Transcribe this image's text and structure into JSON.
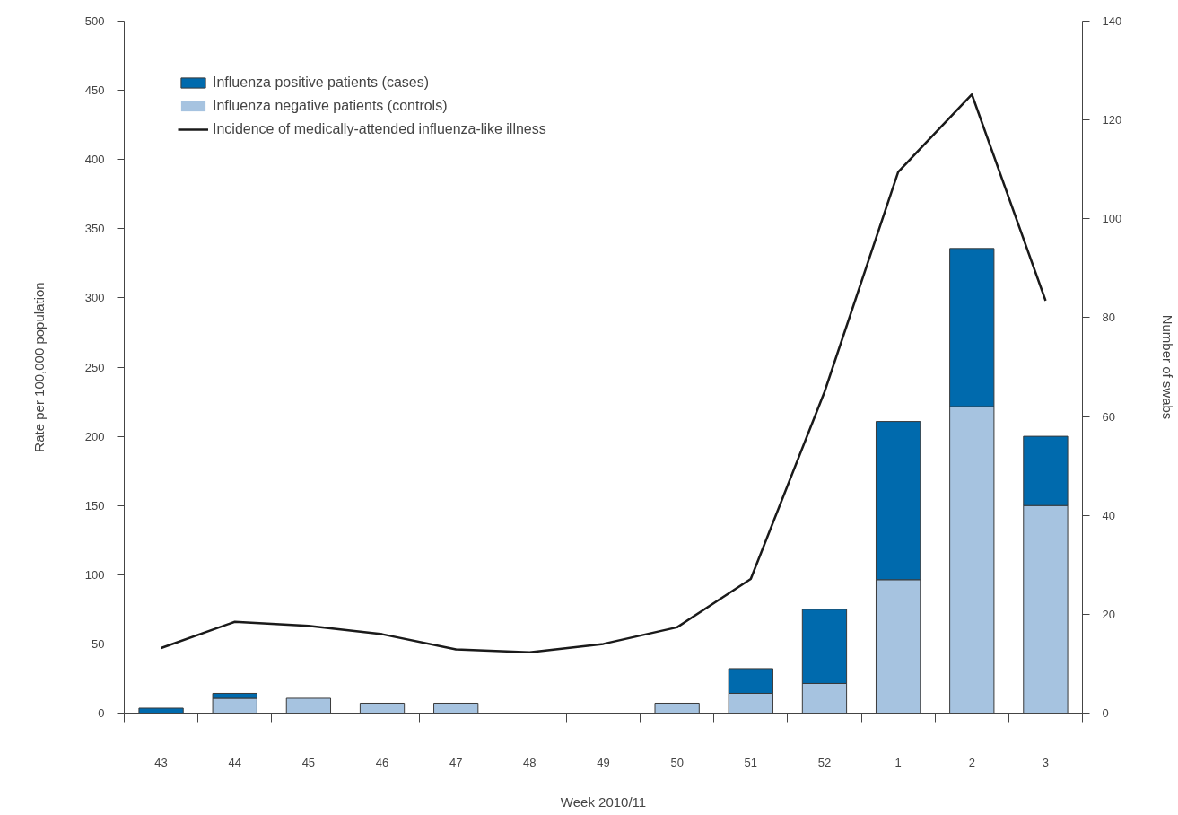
{
  "chart_data": {
    "type": "bar",
    "stacked": true,
    "xlabel": "Week 2010/11",
    "ylabel": "Rate per 100,000 population",
    "y2label": "Number of swabs",
    "categories": [
      "43",
      "44",
      "45",
      "46",
      "47",
      "48",
      "49",
      "50",
      "51",
      "52",
      "1",
      "2",
      "3"
    ],
    "series": [
      {
        "name": "Influenza negative patients (controls)",
        "color": "#a6c3e0",
        "axis": "y2",
        "values": [
          0,
          3,
          3,
          2,
          2,
          0,
          0,
          2,
          4,
          6,
          27,
          62,
          42
        ]
      },
      {
        "name": "Influenza positive patients (cases)",
        "color": "#006aad",
        "axis": "y2",
        "values": [
          1,
          1,
          0,
          0,
          0,
          0,
          0,
          0,
          5,
          15,
          32,
          32,
          14
        ]
      },
      {
        "name": "Incidence of medically-attended influenza-like illness",
        "type": "line",
        "color": "#1a1a1a",
        "values": [
          47,
          66,
          63,
          57,
          46,
          44,
          50,
          62,
          97,
          232,
          391,
          447,
          298
        ]
      }
    ],
    "ylim": [
      0,
      500
    ],
    "yticks": [
      0,
      50,
      100,
      150,
      200,
      250,
      300,
      350,
      400,
      450,
      500
    ],
    "y2lim": [
      0,
      140
    ],
    "y2ticks": [
      0,
      20,
      40,
      60,
      80,
      100,
      120,
      140
    ],
    "legend": "top left",
    "grid": false
  }
}
